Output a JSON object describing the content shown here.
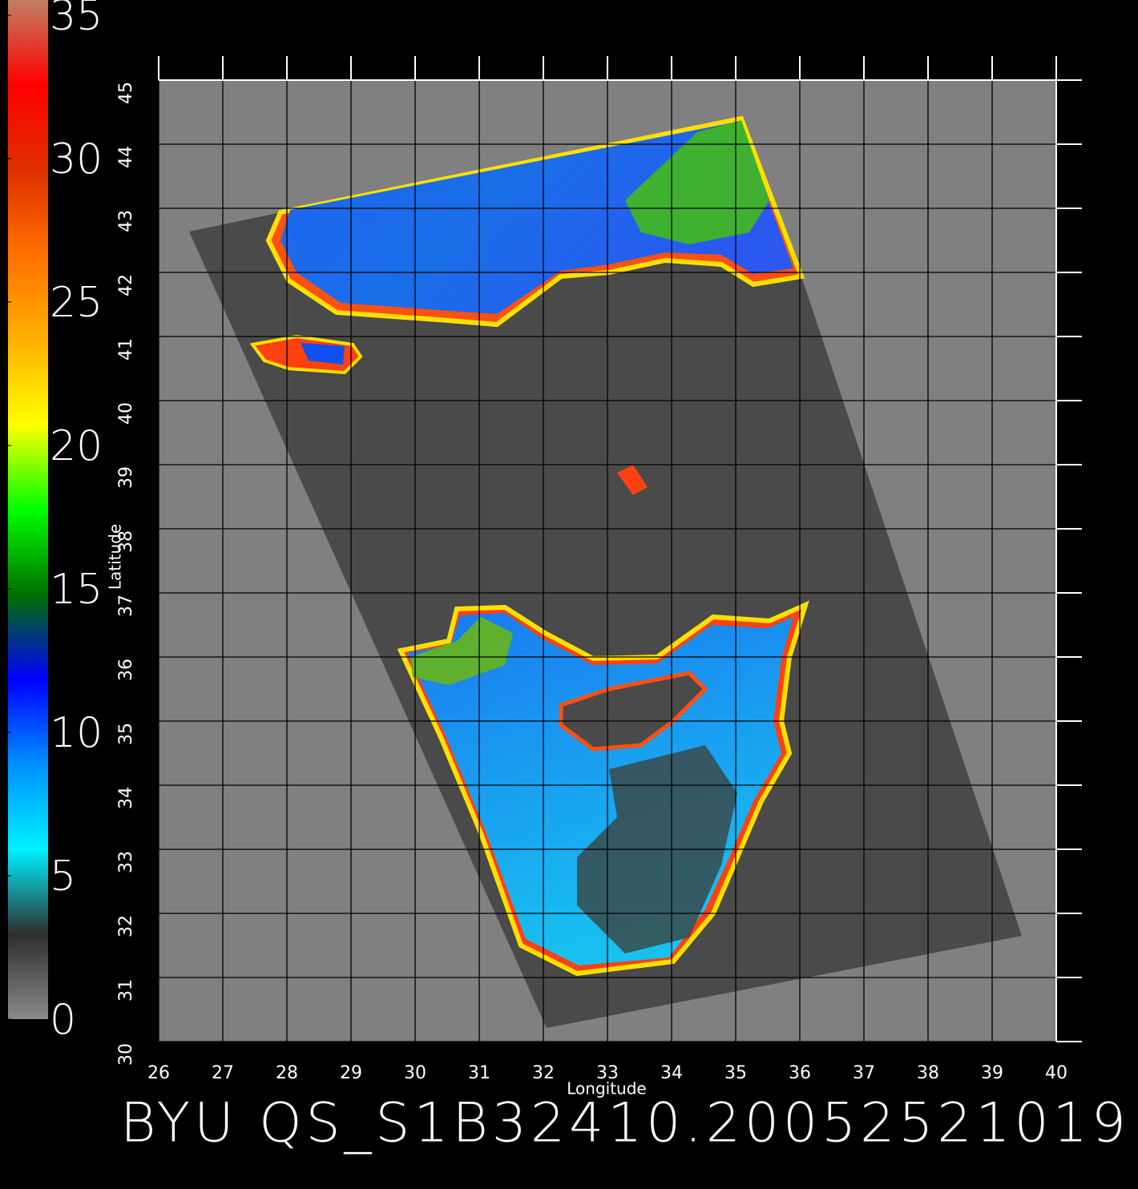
{
  "chart_data": {
    "type": "map",
    "title": "BYU QS_S1B32410.20052521019",
    "xlabel": "Longitude",
    "ylabel": "Latitude",
    "xlim": [
      26,
      40
    ],
    "ylim": [
      30,
      45
    ],
    "xticks": [
      26,
      27,
      28,
      29,
      30,
      31,
      32,
      33,
      34,
      35,
      36,
      37,
      38,
      39,
      40
    ],
    "yticks": [
      30,
      31,
      32,
      33,
      34,
      35,
      36,
      37,
      38,
      39,
      40,
      41,
      42,
      43,
      44,
      45
    ],
    "grid": true,
    "colorbar": {
      "lim": [
        0,
        35
      ],
      "ticks": [
        0,
        5,
        10,
        15,
        20,
        25,
        30,
        35
      ],
      "colors": [
        "#8a8a8a",
        "#2e2e2e",
        "#00f0ff",
        "#0090ff",
        "#0000ff",
        "#007000",
        "#00ff00",
        "#ffff00",
        "#ffb000",
        "#ff7000",
        "#e03000",
        "#ff0000",
        "#c08060"
      ]
    }
  }
}
